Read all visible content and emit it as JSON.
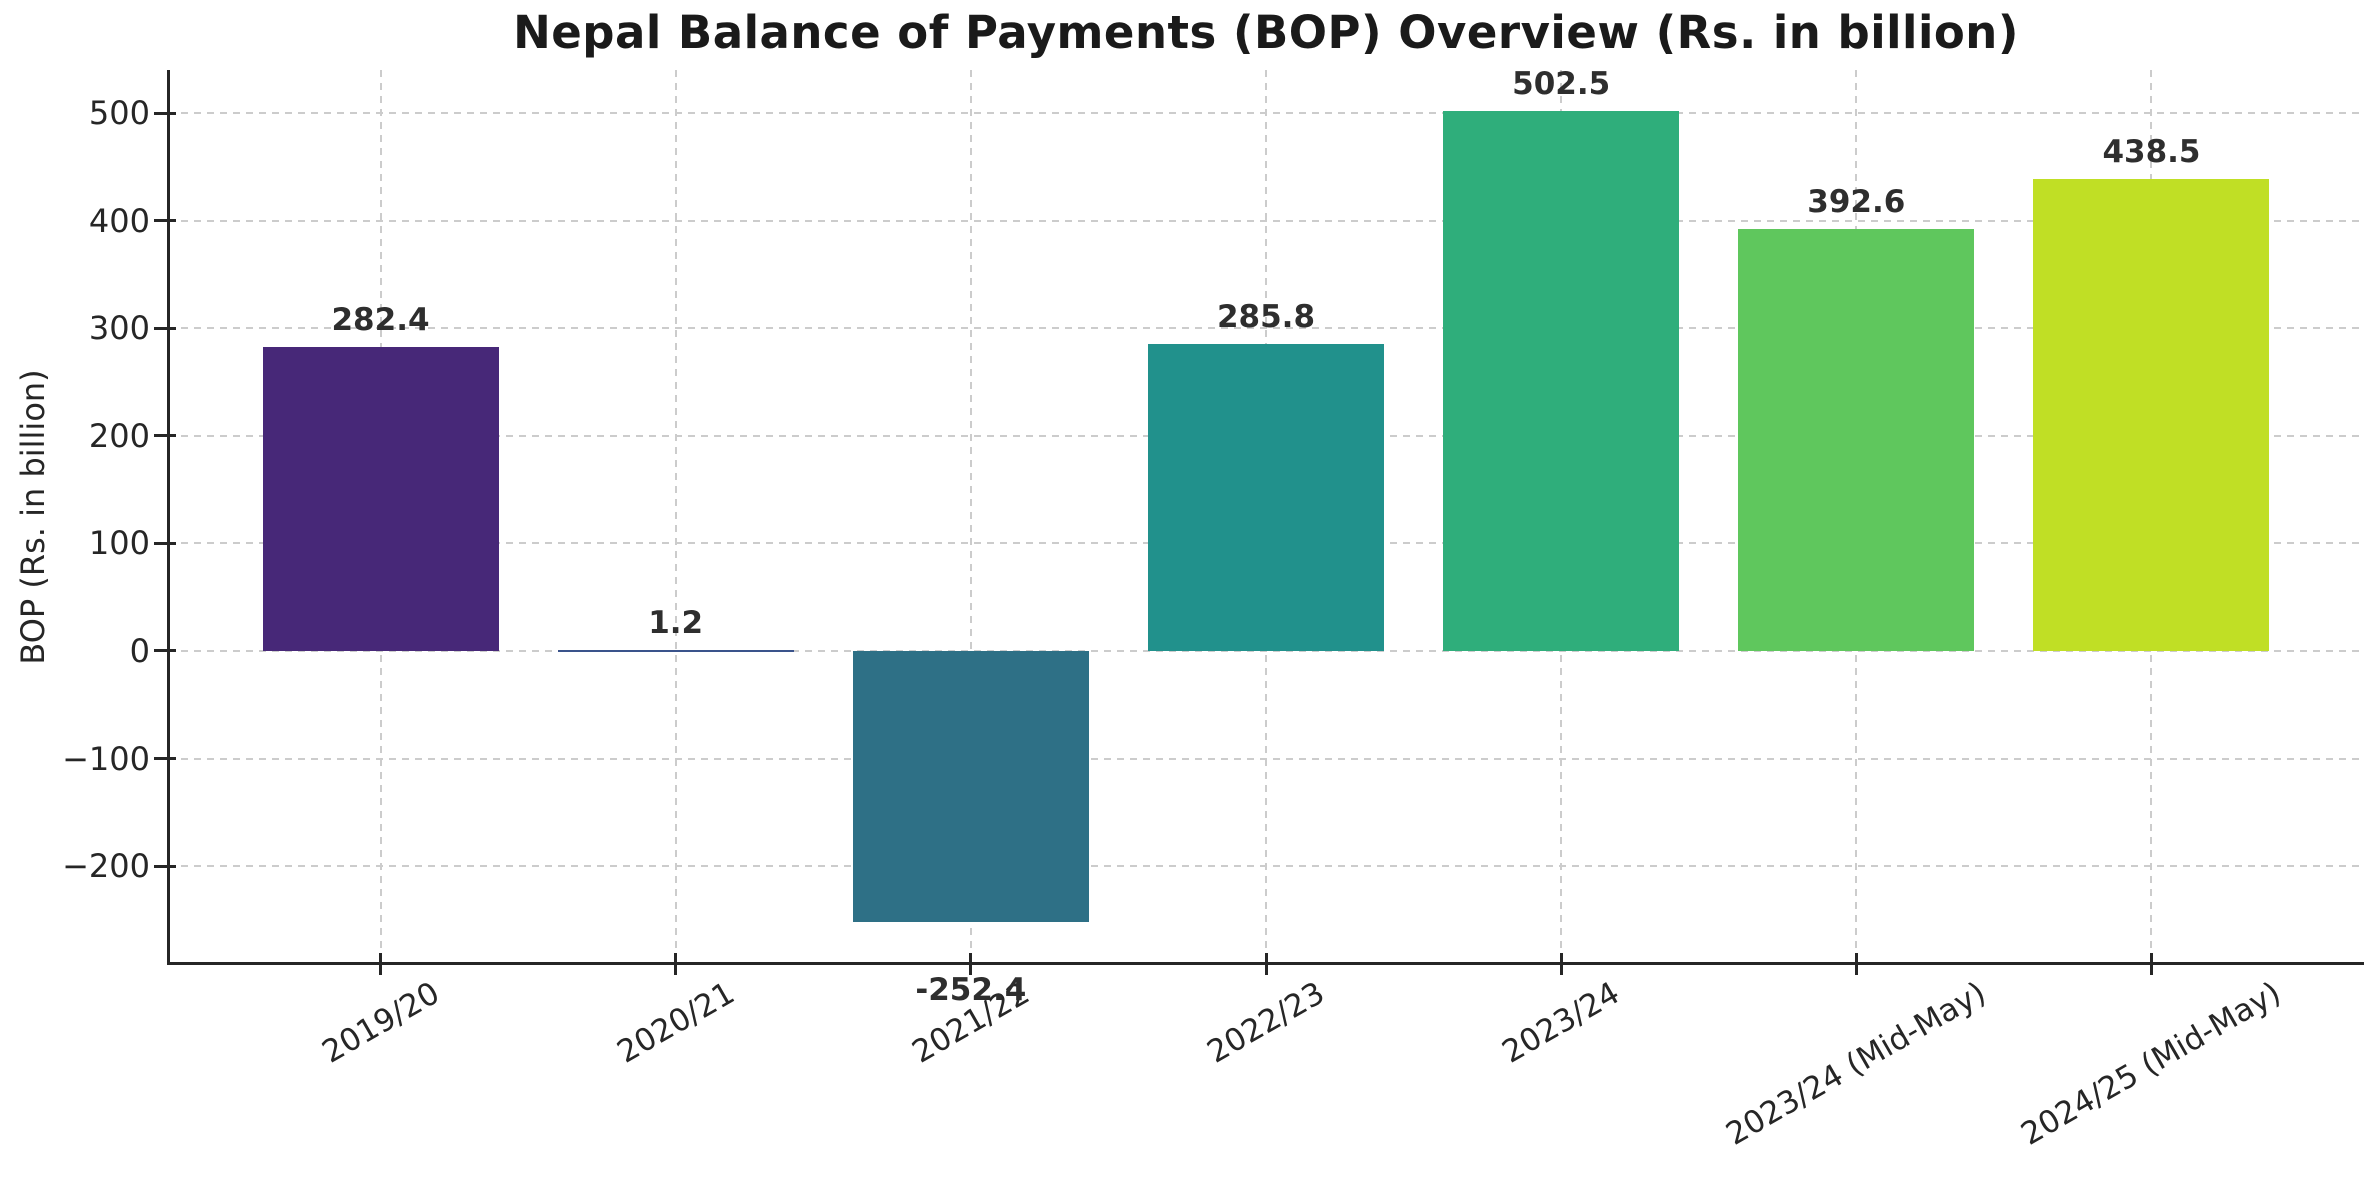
{
  "chart_data": {
    "type": "bar",
    "title": "Nepal Balance of Payments (BOP) Overview (Rs. in billion)",
    "ylabel": "BOP (Rs. in billion)",
    "xlabel": "",
    "categories": [
      "2019/20",
      "2020/21",
      "2021/22",
      "2022/23",
      "2023/24",
      "2023/24 (Mid-May)",
      "2024/25 (Mid-May)"
    ],
    "values": [
      282.4,
      1.2,
      -252.4,
      285.8,
      502.5,
      392.6,
      438.5
    ],
    "value_labels": [
      "282.4",
      "1.2",
      "-252.4",
      "285.8",
      "502.5",
      "392.6",
      "438.5"
    ],
    "bar_colors": [
      "#472878",
      "#3A538B",
      "#2E7086",
      "#21918C",
      "#2FAE7B",
      "#5FC75D",
      "#C0DF25"
    ],
    "yticks": [
      -200,
      -100,
      0,
      100,
      200,
      300,
      400,
      500
    ],
    "y_tick_labels": [
      "−200",
      "−100",
      "0",
      "100",
      "200",
      "300",
      "400",
      "500"
    ],
    "ylim": [
      -290.1,
      540.2
    ],
    "grid": "dashed-both-axes-behind-bars",
    "legend": "none",
    "x_tick_label_rotation_deg": 30,
    "colors": {
      "spine": "#262626",
      "grid": "#cccccc",
      "title_text": "#1a1a1a",
      "tick_text": "#262626",
      "value_label_text": "#2e2e2e",
      "background": "#ffffff"
    }
  }
}
